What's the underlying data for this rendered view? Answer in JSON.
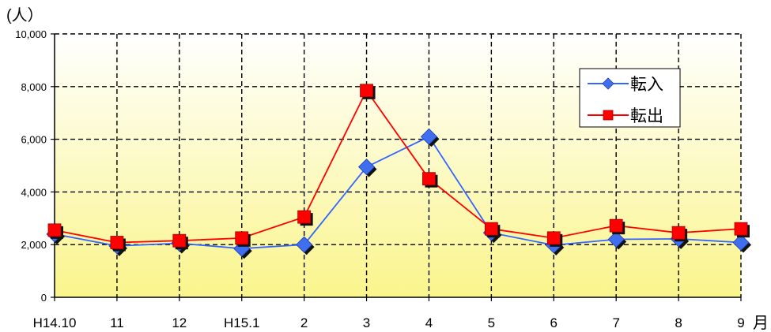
{
  "chart_data": {
    "type": "line",
    "title": "",
    "ylabel": "(人）",
    "xlabel": "",
    "x_unit": "月",
    "categories": [
      "H14.10",
      "11",
      "12",
      "H15.1",
      "2",
      "3",
      "4",
      "5",
      "6",
      "7",
      "8",
      "9"
    ],
    "ylim": [
      0,
      10000
    ],
    "yticks": [
      0,
      2000,
      4000,
      6000,
      8000,
      10000
    ],
    "ytick_labels": [
      "0",
      "2,000",
      "4,000",
      "6,000",
      "8,000",
      "10,000"
    ],
    "grid": "dashed",
    "legend_position": "top-right",
    "background": "gradient-white-to-yellow",
    "series": [
      {
        "name": "転入",
        "marker": "diamond",
        "color": "#3366FF",
        "marker_color": "#3F6FEF",
        "values": [
          2400,
          1950,
          2050,
          1850,
          2000,
          4950,
          6100,
          2450,
          1980,
          2200,
          2220,
          2080
        ]
      },
      {
        "name": "転出",
        "marker": "square",
        "color": "#FF0000",
        "marker_color": "#FF0000",
        "values": [
          2550,
          2080,
          2150,
          2250,
          3050,
          7850,
          4500,
          2600,
          2250,
          2720,
          2450,
          2600
        ]
      }
    ]
  }
}
